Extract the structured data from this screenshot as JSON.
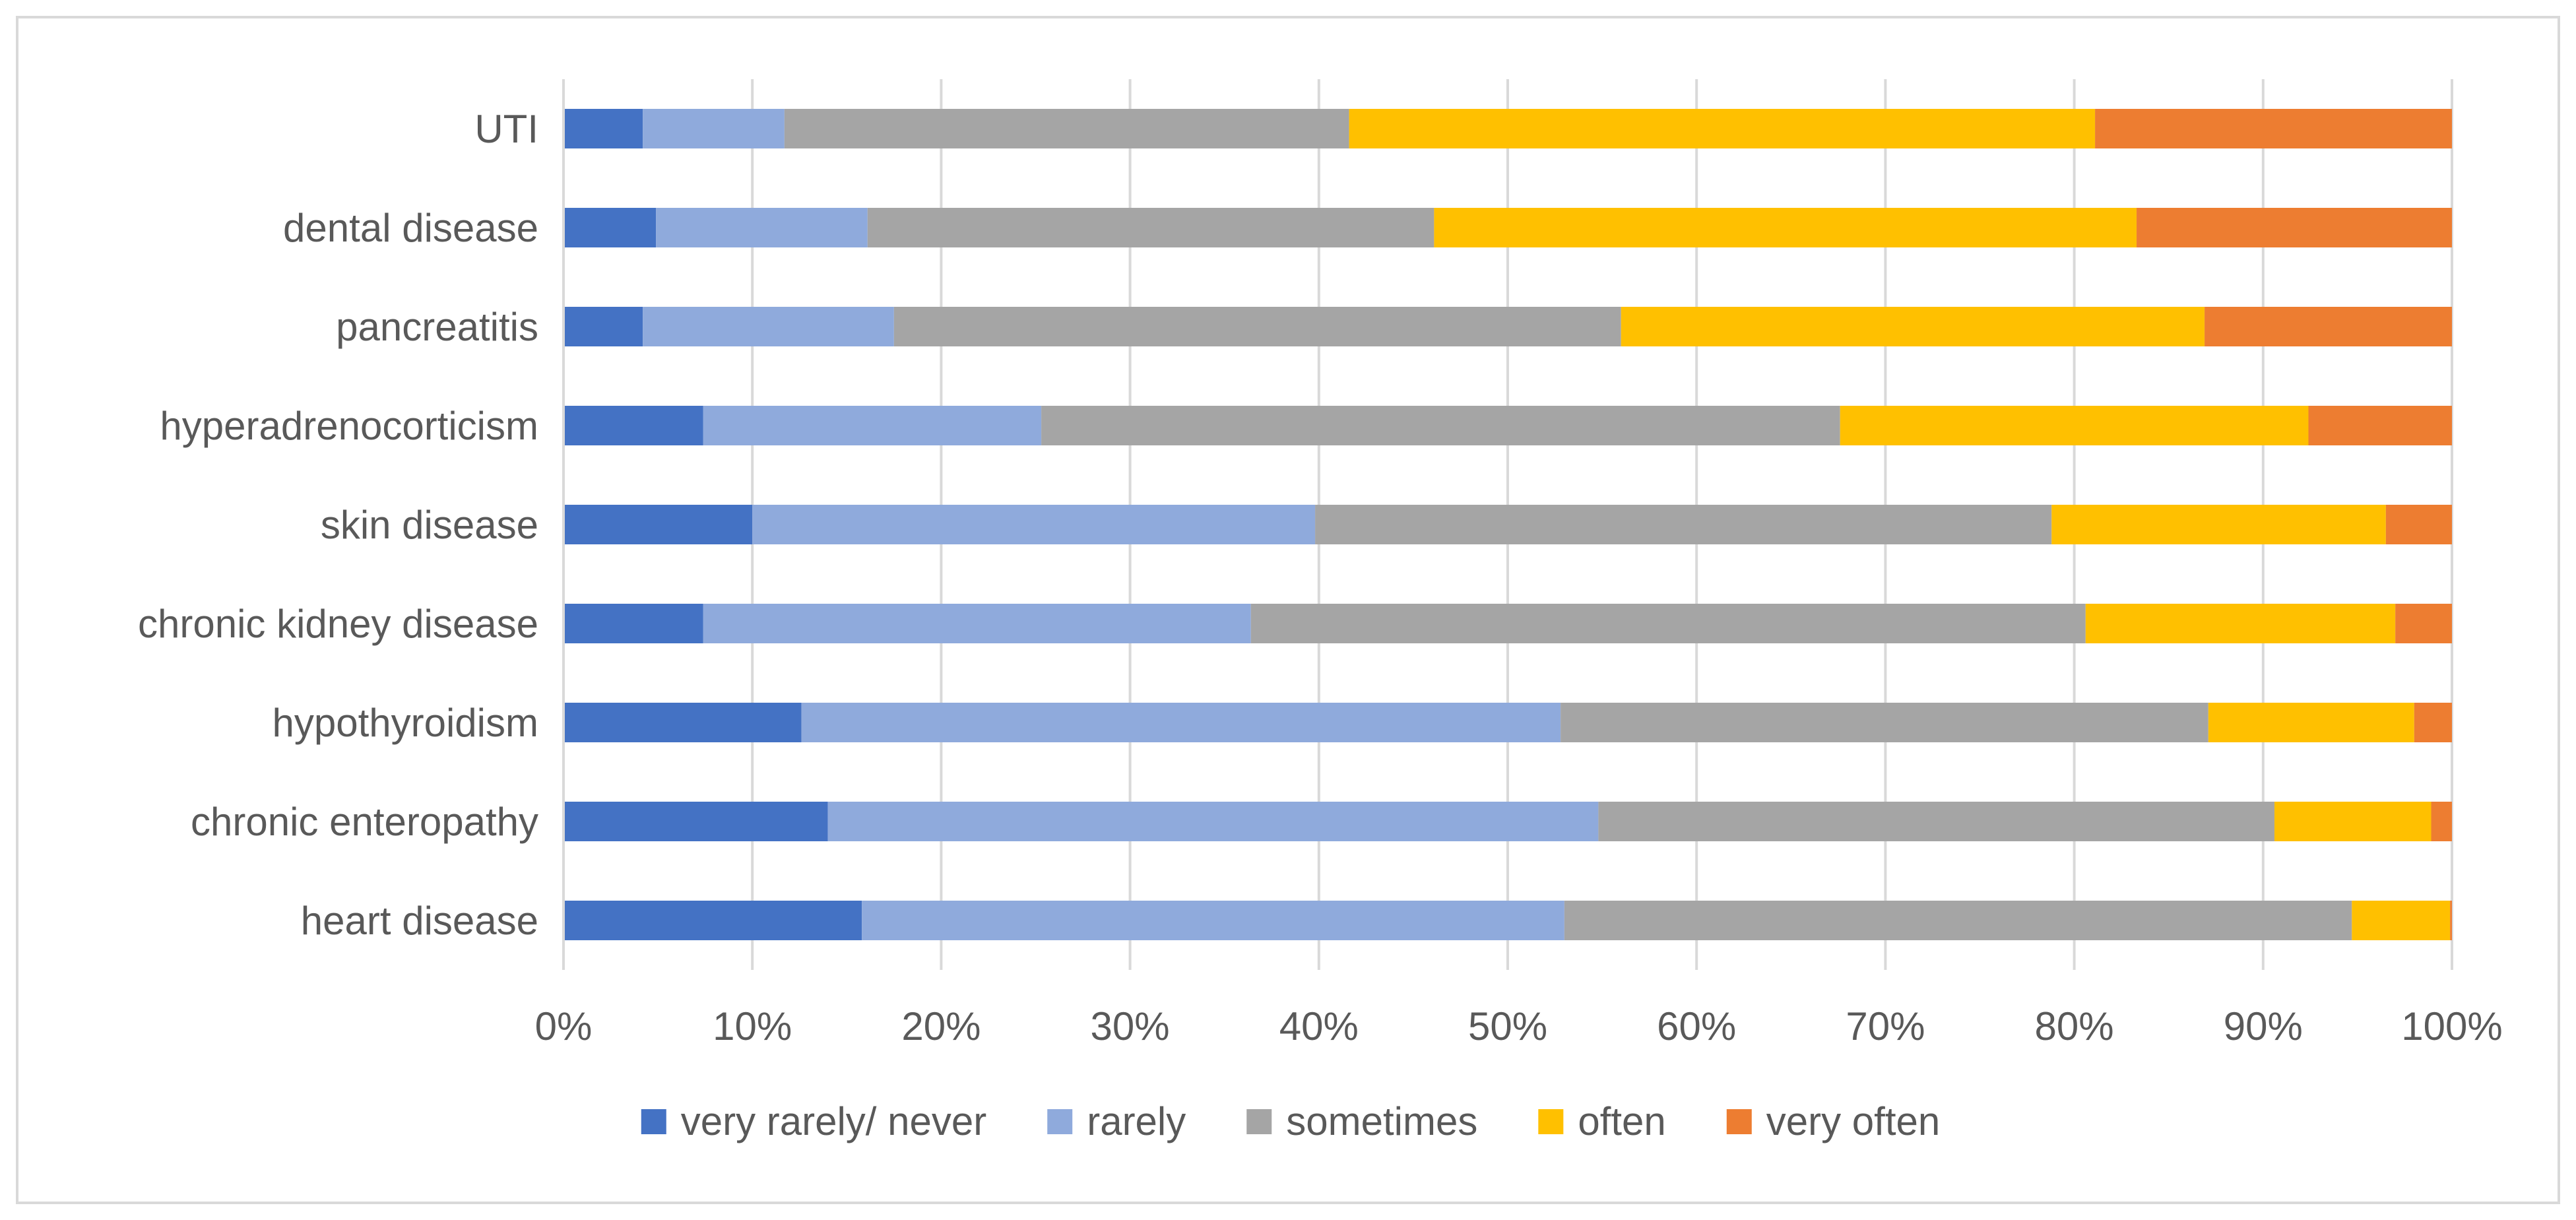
{
  "chart_data": {
    "type": "bar",
    "orientation": "horizontal",
    "stacked": "percent",
    "categories": [
      "UTI",
      "dental disease",
      "pancreatitis",
      "hyperadrenocorticism",
      "skin disease",
      "chronic kidney disease",
      "hypothyroidism",
      "chronic enteropathy",
      "heart disease"
    ],
    "series": [
      {
        "name": "very rarely/ never",
        "color": "#4472c4",
        "values": [
          4.2,
          4.9,
          4.2,
          7.4,
          10.0,
          7.4,
          12.6,
          14.0,
          15.8
        ]
      },
      {
        "name": "rarely",
        "color": "#8faadc",
        "values": [
          7.5,
          11.2,
          13.3,
          17.9,
          29.8,
          29.0,
          40.2,
          40.8,
          37.2
        ]
      },
      {
        "name": "sometimes",
        "color": "#a5a5a5",
        "values": [
          29.9,
          30.0,
          38.5,
          42.3,
          39.0,
          44.2,
          34.3,
          35.8,
          41.7
        ]
      },
      {
        "name": "often",
        "color": "#ffc000",
        "values": [
          39.5,
          37.2,
          30.9,
          24.8,
          17.7,
          16.4,
          10.9,
          8.3,
          5.2
        ]
      },
      {
        "name": "very often",
        "color": "#ed7d31",
        "values": [
          18.9,
          16.7,
          13.1,
          7.6,
          3.5,
          3.0,
          2.0,
          1.1,
          0.1
        ]
      }
    ],
    "xlim": [
      0,
      100
    ],
    "xticks": [
      "0%",
      "10%",
      "20%",
      "30%",
      "40%",
      "50%",
      "60%",
      "70%",
      "80%",
      "90%",
      "100%"
    ],
    "title": "",
    "xlabel": "",
    "ylabel": "",
    "grid": "vertical",
    "legend": "bottom"
  }
}
